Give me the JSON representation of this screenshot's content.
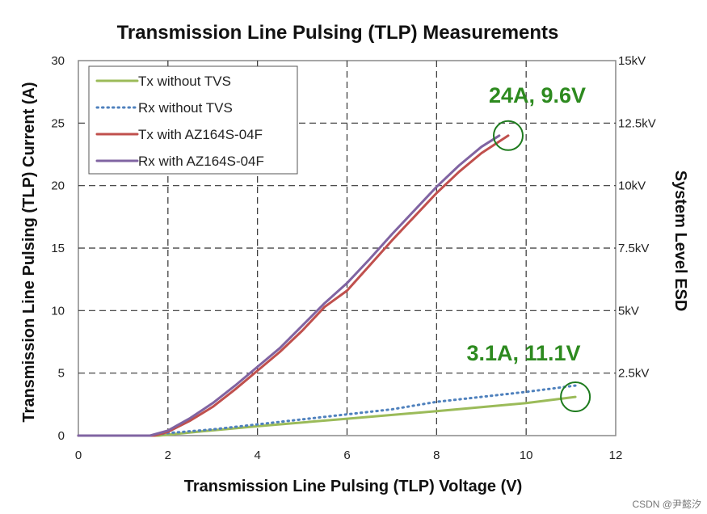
{
  "chart_data": {
    "type": "line",
    "title": "Transmission Line Pulsing (TLP) Measurements",
    "xlabel": "Transmission Line Pulsing (TLP) Voltage (V)",
    "ylabel": "Transmission Line Pulsing (TLP) Current (A)",
    "y2label": "System Level ESD",
    "xlim": [
      0,
      12
    ],
    "ylim": [
      0,
      30
    ],
    "x_ticks": [
      "0",
      "2",
      "4",
      "6",
      "8",
      "10",
      "12"
    ],
    "y_ticks": [
      "0",
      "5",
      "10",
      "15",
      "20",
      "25",
      "30"
    ],
    "y2_ticks": [
      {
        "at": 5,
        "label": "2.5kV"
      },
      {
        "at": 10,
        "label": "5kV"
      },
      {
        "at": 15,
        "label": "7.5kV"
      },
      {
        "at": 20,
        "label": "10kV"
      },
      {
        "at": 25,
        "label": "12.5kV"
      },
      {
        "at": 30,
        "label": "15kV"
      }
    ],
    "grid": true,
    "legend_position": "top-left",
    "series": [
      {
        "name": "Tx without TVS",
        "color": "#9bbb59",
        "style": "solid",
        "x": [
          0,
          1.8,
          2.5,
          4,
          6,
          8,
          10,
          11.1
        ],
        "y": [
          0,
          0,
          0.25,
          0.75,
          1.35,
          1.95,
          2.6,
          3.1
        ]
      },
      {
        "name": "Rx without TVS",
        "color": "#4f81bd",
        "style": "dotted",
        "x": [
          0,
          1.6,
          2,
          3,
          4,
          5,
          6,
          7,
          8,
          9,
          10,
          11.1
        ],
        "y": [
          0,
          0,
          0.2,
          0.5,
          0.9,
          1.3,
          1.7,
          2.1,
          2.7,
          3.1,
          3.5,
          4.0
        ]
      },
      {
        "name": "Tx with AZ164S-04F",
        "color": "#c0504d",
        "style": "solid",
        "x": [
          0,
          1.7,
          2.0,
          2.5,
          3.0,
          3.5,
          4.0,
          4.5,
          5.0,
          5.5,
          6.0,
          6.5,
          7.0,
          7.5,
          8.0,
          8.5,
          9.0,
          9.6
        ],
        "y": [
          0,
          0,
          0.3,
          1.2,
          2.3,
          3.7,
          5.2,
          6.7,
          8.4,
          10.3,
          11.6,
          13.6,
          15.6,
          17.5,
          19.4,
          21.1,
          22.6,
          24.0
        ]
      },
      {
        "name": "Rx with AZ164S-04F",
        "color": "#8064a2",
        "style": "solid",
        "x": [
          0,
          1.6,
          2.0,
          2.5,
          3.0,
          3.5,
          4.0,
          4.5,
          5.0,
          5.5,
          6.0,
          6.5,
          7.0,
          7.5,
          8.0,
          8.5,
          9.0,
          9.4
        ],
        "y": [
          0,
          0,
          0.4,
          1.4,
          2.6,
          4.0,
          5.5,
          7.0,
          8.8,
          10.6,
          12.2,
          14.1,
          16.1,
          18.0,
          19.9,
          21.6,
          23.1,
          24.0
        ]
      }
    ],
    "annotations": [
      {
        "text": "24A, 9.6V",
        "x": 9.6,
        "y": 24
      },
      {
        "text": "3.1A, 11.1V",
        "x": 11.1,
        "y": 3.1
      }
    ]
  },
  "watermark": "CSDN @尹懿汐"
}
